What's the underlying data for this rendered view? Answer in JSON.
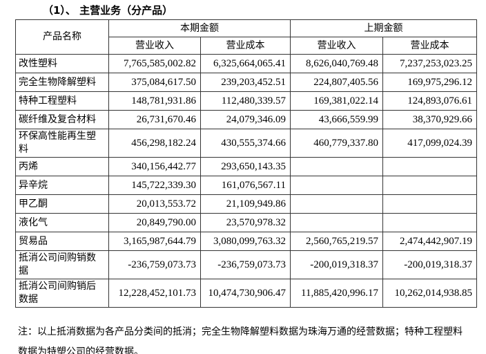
{
  "heading": "（1）、 主营业务（分产品）",
  "table": {
    "header": {
      "name": "产品名称",
      "current": "本期金额",
      "previous": "上期金额",
      "revenue": "营业收入",
      "cost": "营业成本"
    },
    "rows": [
      [
        "改性塑料",
        "7,765,585,002.82",
        "6,325,664,065.41",
        "8,626,040,769.48",
        "7,237,253,023.25"
      ],
      [
        "完全生物降解塑料",
        "375,084,617.50",
        "239,203,452.51",
        "224,807,405.56",
        "169,975,296.12"
      ],
      [
        "特种工程塑料",
        "148,781,931.86",
        "112,480,339.57",
        "169,381,022.14",
        "124,893,076.61"
      ],
      [
        "碳纤维及复合材料",
        "26,731,670.46",
        "24,079,346.09",
        "43,666,559.99",
        "38,370,929.66"
      ],
      [
        "环保高性能再生塑料",
        "456,298,182.24",
        "430,555,374.66",
        "460,779,337.80",
        "417,099,024.39"
      ],
      [
        "丙烯",
        "340,156,442.77",
        "293,650,143.35"
      ],
      [
        "异辛烷",
        "145,722,339.30",
        "161,076,567.11"
      ],
      [
        "甲乙酮",
        "20,013,553.72",
        "21,109,949.86"
      ],
      [
        "液化气",
        "20,849,790.00",
        "23,570,978.32"
      ],
      [
        "贸易品",
        "3,165,987,644.79",
        "3,080,099,763.32",
        "2,560,765,219.57",
        "2,474,442,907.19"
      ],
      [
        "抵消公司间购销数据",
        "-236,759,073.73",
        "-236,759,073.73",
        "-200,019,318.37",
        "-200,019,318.37"
      ],
      [
        "抵消公司间购销后数据",
        "12,228,452,101.73",
        "10,474,730,906.47",
        "11,885,420,996.17",
        "10,262,014,938.85"
      ]
    ]
  },
  "note": "注：以上抵消数据为各产品分类间的抵消；完全生物降解塑料数据为珠海万通的经营数据；特种工程塑料数据为特塑公司的经营数据。"
}
